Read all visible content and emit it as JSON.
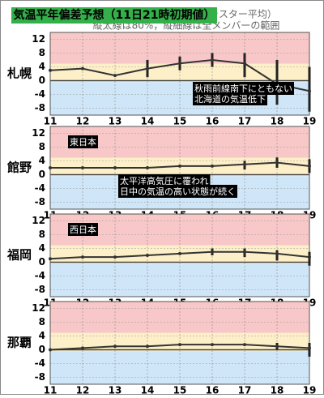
{
  "header": {
    "title": "気温平年偏差予想（11日21時初期値）",
    "subtitle": "各地点における気温平年偏差（クラスター平均）",
    "note": "縦太線は80%，縦細線は全メンバーの範囲"
  },
  "chart_data": [
    {
      "type": "line",
      "station": "札幌",
      "ylim": [
        -10,
        14
      ],
      "yticks": [
        12,
        8,
        4,
        0,
        -4,
        -8
      ],
      "xlim": [
        11,
        19
      ],
      "xticks": [
        11,
        12,
        13,
        14,
        15,
        16,
        17,
        18,
        19
      ],
      "grid": true,
      "x": [
        11,
        12,
        13,
        14,
        15,
        16,
        17,
        18,
        19
      ],
      "series": [
        {
          "color": "#333333",
          "values": [
            3,
            3.5,
            1.5,
            3.5,
            5,
            6,
            5,
            -1,
            -3
          ]
        }
      ],
      "range": {
        "x": [
          14,
          15,
          16,
          17,
          18,
          19
        ],
        "low": [
          1,
          3,
          4,
          1,
          -7,
          -9
        ],
        "high": [
          6,
          7,
          8,
          8,
          6,
          4
        ]
      },
      "annotations": [
        "秋雨前線南下にともない",
        "北海道の気温低下"
      ]
    },
    {
      "type": "line",
      "station": "館野",
      "ylim": [
        -10,
        14
      ],
      "yticks": [
        12,
        8,
        4,
        0,
        -4,
        -8
      ],
      "xlim": [
        11,
        19
      ],
      "xticks": [
        11,
        12,
        13,
        14,
        15,
        16,
        17,
        18,
        19
      ],
      "grid": true,
      "x": [
        11,
        12,
        13,
        14,
        15,
        16,
        17,
        18,
        19
      ],
      "series": [
        {
          "color": "#333333",
          "values": [
            2,
            2,
            2,
            2,
            2.5,
            2.5,
            3,
            3.5,
            2.5
          ]
        }
      ],
      "range": {
        "x": [
          17,
          18,
          19
        ],
        "low": [
          1.5,
          2,
          0.5
        ],
        "high": [
          4,
          5,
          4.5
        ]
      },
      "region": "東日本",
      "annotations": [
        "太平洋高気圧に覆われ",
        "日中の気温の高い状態が続く"
      ]
    },
    {
      "type": "line",
      "station": "福岡",
      "ylim": [
        -10,
        14
      ],
      "yticks": [
        12,
        8,
        4,
        0,
        -4,
        -8
      ],
      "xlim": [
        11,
        19
      ],
      "xticks": [
        11,
        12,
        13,
        14,
        15,
        16,
        17,
        18,
        19
      ],
      "grid": true,
      "x": [
        11,
        12,
        13,
        14,
        15,
        16,
        17,
        18,
        19
      ],
      "series": [
        {
          "color": "#333333",
          "values": [
            1,
            1.5,
            1.5,
            2,
            2.5,
            3,
            3,
            2.5,
            1.5
          ]
        }
      ],
      "range": {
        "x": [
          16,
          17,
          18,
          19
        ],
        "low": [
          2,
          1.5,
          0.5,
          -1
        ],
        "high": [
          4,
          4,
          3.5,
          3
        ]
      },
      "region": "西日本"
    },
    {
      "type": "line",
      "station": "那覇",
      "ylim": [
        -10,
        14
      ],
      "yticks": [
        12,
        8,
        4,
        0,
        -4,
        -8
      ],
      "xlim": [
        11,
        19
      ],
      "xticks": [
        11,
        12,
        13,
        14,
        15,
        16,
        17,
        18,
        19
      ],
      "grid": true,
      "x": [
        11,
        12,
        13,
        14,
        15,
        16,
        17,
        18,
        19
      ],
      "series": [
        {
          "color": "#333333",
          "values": [
            0,
            0.5,
            1,
            1,
            1.5,
            1.5,
            1.5,
            1,
            0.5
          ]
        }
      ],
      "range": {
        "x": [
          18,
          19
        ],
        "low": [
          0,
          -2
        ],
        "high": [
          2,
          2
        ]
      }
    }
  ]
}
